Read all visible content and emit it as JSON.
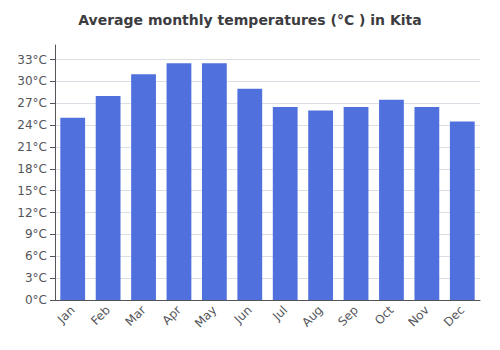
{
  "chart_data": {
    "type": "bar",
    "title": "Average monthly temperatures (°C ) in Kita",
    "categories": [
      "Jan",
      "Feb",
      "Mar",
      "Apr",
      "May",
      "Jun",
      "Jul",
      "Aug",
      "Sep",
      "Oct",
      "Nov",
      "Dec"
    ],
    "values": [
      25.0,
      28.0,
      31.0,
      32.5,
      32.5,
      29.0,
      26.5,
      26.0,
      26.5,
      27.5,
      26.5,
      24.5
    ],
    "ylim": [
      0,
      35
    ],
    "yticks": [
      {
        "value": 0,
        "label": "0°C"
      },
      {
        "value": 3,
        "label": "3°C"
      },
      {
        "value": 6,
        "label": "6°C"
      },
      {
        "value": 9,
        "label": "9°C"
      },
      {
        "value": 12,
        "label": "12°C"
      },
      {
        "value": 15,
        "label": "15°C"
      },
      {
        "value": 18,
        "label": "18°C"
      },
      {
        "value": 21,
        "label": "21°C"
      },
      {
        "value": 24,
        "label": "24°C"
      },
      {
        "value": 27,
        "label": "27°C"
      },
      {
        "value": 30,
        "label": "30°C"
      },
      {
        "value": 33,
        "label": "33°C"
      }
    ],
    "grid": true
  }
}
